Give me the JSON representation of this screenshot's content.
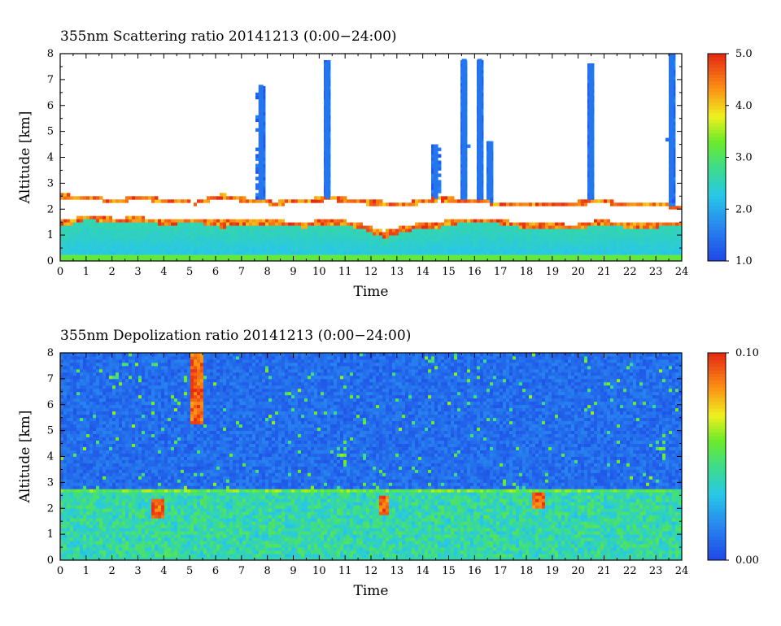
{
  "chart_data": [
    {
      "type": "heatmap",
      "title": "355nm Scattering ratio  20141213 (0:00−24:00)",
      "xlabel": "Time",
      "ylabel": "Altitude [km]",
      "xlim": [
        0,
        24
      ],
      "ylim": [
        0,
        8
      ],
      "x_ticks": [
        "0",
        "1",
        "2",
        "3",
        "4",
        "5",
        "6",
        "7",
        "8",
        "9",
        "10",
        "11",
        "12",
        "13",
        "14",
        "15",
        "16",
        "17",
        "18",
        "19",
        "20",
        "21",
        "22",
        "23",
        "24"
      ],
      "y_ticks": [
        "0",
        "1",
        "2",
        "3",
        "4",
        "5",
        "6",
        "7",
        "8"
      ],
      "colorbar": {
        "min": 1.0,
        "max": 5.0,
        "ticks": [
          "1.0",
          "2.0",
          "3.0",
          "4.0",
          "5.0"
        ]
      },
      "cloud_layer_top_km": [
        2.6,
        2.5,
        2.4,
        2.5,
        2.4,
        2.3,
        2.6,
        2.4,
        2.3,
        2.4,
        2.5,
        2.4,
        2.3,
        2.3,
        2.5,
        2.4,
        2.3,
        2.3,
        2.2,
        2.3,
        2.4,
        2.2,
        2.3,
        2.1
      ],
      "cloud_layer_base_km": [
        1.3,
        1.6,
        1.5,
        1.5,
        1.4,
        1.5,
        1.3,
        1.4,
        1.4,
        1.3,
        1.4,
        1.3,
        0.9,
        1.2,
        1.3,
        1.5,
        1.5,
        1.3,
        1.3,
        1.2,
        1.4,
        1.3,
        1.3,
        1.4
      ],
      "plumes": [
        {
          "t": 7.75,
          "top_km": 6.8
        },
        {
          "t": 10.3,
          "top_km": 7.7
        },
        {
          "t": 14.5,
          "top_km": 4.5
        },
        {
          "t": 15.6,
          "top_km": 7.8
        },
        {
          "t": 16.2,
          "top_km": 7.8
        },
        {
          "t": 16.6,
          "top_km": 4.6
        },
        {
          "t": 20.5,
          "top_km": 7.6
        },
        {
          "t": 23.6,
          "top_km": 8.0
        }
      ]
    },
    {
      "type": "heatmap",
      "title": "355nm Depolization ratio  20141213 (0:00−24:00)",
      "xlabel": "Time",
      "ylabel": "Altitude [km]",
      "xlim": [
        0,
        24
      ],
      "ylim": [
        0,
        8
      ],
      "x_ticks": [
        "0",
        "1",
        "2",
        "3",
        "4",
        "5",
        "6",
        "7",
        "8",
        "9",
        "10",
        "11",
        "12",
        "13",
        "14",
        "15",
        "16",
        "17",
        "18",
        "19",
        "20",
        "21",
        "22",
        "23",
        "24"
      ],
      "y_ticks": [
        "0",
        "1",
        "2",
        "3",
        "4",
        "5",
        "6",
        "7",
        "8"
      ],
      "colorbar": {
        "min": 0.0,
        "max": 0.1,
        "ticks": [
          "0.00",
          "0.10"
        ]
      },
      "boundary_layer_top_km": 2.6,
      "high_depol_features": [
        {
          "t": 5.3,
          "alt_from_km": 5.2,
          "alt_to_km": 8.0
        },
        {
          "t": 3.8,
          "alt_from_km": 1.6,
          "alt_to_km": 2.4
        },
        {
          "t": 12.5,
          "alt_from_km": 1.8,
          "alt_to_km": 2.5
        },
        {
          "t": 18.5,
          "alt_from_km": 2.0,
          "alt_to_km": 2.6
        }
      ]
    }
  ]
}
